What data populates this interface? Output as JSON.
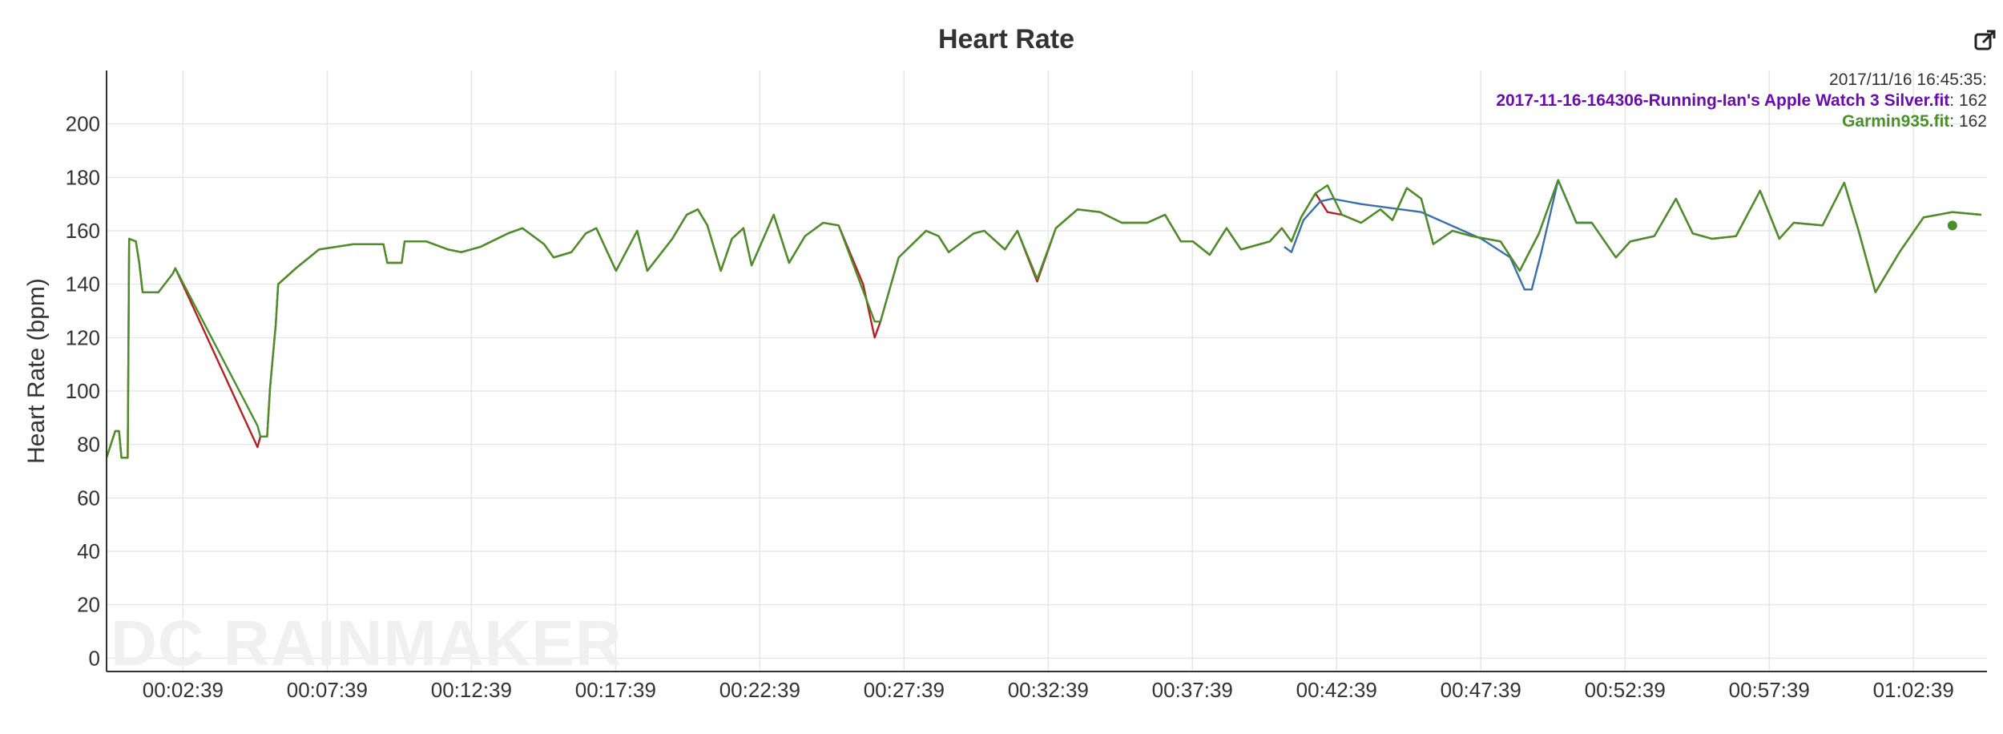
{
  "toolbar": {
    "export_icon": "external-link-icon"
  },
  "colors": {
    "series_apple": "#b22222",
    "series_garmin": "#4a8f2a",
    "series_extra": "#3a6fa8",
    "grid": "#e6e6e6",
    "axis": "#333333",
    "legend_apple": "#6a0dad",
    "legend_garmin": "#4a8f2a",
    "watermark": "#f0f0f0"
  },
  "watermark": "DC RAINMAKER",
  "tooltip": {
    "timestamp": "2017/11/16 16:45:35:",
    "entries": [
      {
        "name": "2017-11-16-164306-Running-Ian's Apple Watch 3 Silver.fit",
        "value": ": 162",
        "color_key": "legend_apple"
      },
      {
        "name": "Garmin935.fit",
        "value": ": 162",
        "color_key": "legend_garmin"
      }
    ]
  },
  "chart_data": {
    "type": "line",
    "title": "Heart Rate",
    "xlabel": "",
    "ylabel": "Heart Rate (bpm)",
    "xlim": [
      "00:00:00",
      "01:05:12"
    ],
    "ylim": [
      -5,
      220
    ],
    "x_ticks": [
      "00:02:39",
      "00:07:39",
      "00:12:39",
      "00:17:39",
      "00:22:39",
      "00:27:39",
      "00:32:39",
      "00:37:39",
      "00:42:39",
      "00:47:39",
      "00:52:39",
      "00:57:39",
      "01:02:39"
    ],
    "y_ticks": [
      0,
      20,
      40,
      60,
      80,
      100,
      120,
      140,
      160,
      180,
      200
    ],
    "grid": true,
    "legend_position": "top-right",
    "series": [
      {
        "color_key": "series_apple",
        "points": [
          [
            "00:00:00",
            75
          ],
          [
            "00:00:18",
            85
          ],
          [
            "00:00:26",
            85
          ],
          [
            "00:00:31",
            75
          ],
          [
            "00:00:44",
            75
          ],
          [
            "00:00:47",
            157
          ],
          [
            "00:01:01",
            156
          ],
          [
            "00:01:08",
            148
          ],
          [
            "00:01:15",
            137
          ],
          [
            "00:01:48",
            137
          ],
          [
            "00:02:18",
            144
          ],
          [
            "00:02:23",
            146
          ],
          [
            "00:05:14",
            79
          ],
          [
            "00:05:20",
            83
          ],
          [
            "00:05:34",
            83
          ],
          [
            "00:05:40",
            101
          ],
          [
            "00:05:52",
            125
          ],
          [
            "00:05:57",
            140
          ],
          [
            "00:06:34",
            146
          ],
          [
            "00:07:22",
            153
          ],
          [
            "00:08:34",
            155
          ],
          [
            "00:09:36",
            155
          ],
          [
            "00:09:44",
            148
          ],
          [
            "00:10:14",
            148
          ],
          [
            "00:10:20",
            156
          ],
          [
            "00:11:05",
            156
          ],
          [
            "00:11:50",
            153
          ],
          [
            "00:12:18",
            152
          ],
          [
            "00:12:58",
            154
          ],
          [
            "00:13:55",
            159
          ],
          [
            "00:14:25",
            161
          ],
          [
            "00:15:10",
            155
          ],
          [
            "00:15:30",
            150
          ],
          [
            "00:16:07",
            152
          ],
          [
            "00:16:37",
            159
          ],
          [
            "00:16:59",
            161
          ],
          [
            "00:17:40",
            145
          ],
          [
            "00:18:24",
            160
          ],
          [
            "00:18:45",
            145
          ],
          [
            "00:19:37",
            157
          ],
          [
            "00:20:07",
            166
          ],
          [
            "00:20:30",
            168
          ],
          [
            "00:20:50",
            162
          ],
          [
            "00:21:18",
            145
          ],
          [
            "00:21:41",
            157
          ],
          [
            "00:22:05",
            161
          ],
          [
            "00:22:22",
            147
          ],
          [
            "00:23:08",
            166
          ],
          [
            "00:23:40",
            148
          ],
          [
            "00:24:13",
            158
          ],
          [
            "00:24:51",
            163
          ],
          [
            "00:25:23",
            162
          ],
          [
            "00:26:14",
            140
          ],
          [
            "00:26:38",
            120
          ],
          [
            "00:26:50",
            126
          ],
          [
            "00:27:28",
            150
          ],
          [
            "00:28:25",
            160
          ],
          [
            "00:28:51",
            158
          ],
          [
            "00:29:12",
            152
          ],
          [
            "00:30:04",
            159
          ],
          [
            "00:30:26",
            160
          ],
          [
            "00:31:09",
            153
          ],
          [
            "00:31:35",
            160
          ],
          [
            "00:32:16",
            141
          ],
          [
            "00:32:55",
            161
          ],
          [
            "00:33:40",
            168
          ],
          [
            "00:34:27",
            167
          ],
          [
            "00:35:12",
            163
          ],
          [
            "00:36:05",
            163
          ],
          [
            "00:36:42",
            166
          ],
          [
            "00:37:15",
            156
          ],
          [
            "00:37:40",
            156
          ],
          [
            "00:38:15",
            151
          ],
          [
            "00:38:50",
            161
          ],
          [
            "00:39:20",
            153
          ],
          [
            "00:40:20",
            156
          ],
          [
            "00:40:45",
            161
          ],
          [
            "00:41:05",
            156
          ],
          [
            "00:41:25",
            165
          ],
          [
            "00:41:55",
            174
          ],
          [
            "00:42:20",
            167
          ],
          [
            "00:42:50",
            166
          ],
          [
            "00:43:30",
            163
          ],
          [
            "00:44:10",
            168
          ],
          [
            "00:44:35",
            164
          ],
          [
            "00:45:05",
            176
          ],
          [
            "00:45:35",
            172
          ],
          [
            "00:46:00",
            155
          ],
          [
            "00:46:40",
            160
          ],
          [
            "00:47:20",
            158
          ],
          [
            "00:48:20",
            156
          ],
          [
            "00:49:00",
            145
          ],
          [
            "00:49:40",
            159
          ],
          [
            "00:50:20",
            179
          ],
          [
            "00:50:58",
            163
          ],
          [
            "00:51:30",
            163
          ],
          [
            "00:52:20",
            150
          ],
          [
            "00:52:50",
            156
          ],
          [
            "00:53:40",
            158
          ],
          [
            "00:54:25",
            172
          ],
          [
            "00:55:00",
            159
          ],
          [
            "00:55:40",
            157
          ],
          [
            "00:56:30",
            158
          ],
          [
            "00:57:20",
            175
          ],
          [
            "00:58:00",
            157
          ],
          [
            "00:58:30",
            163
          ],
          [
            "00:59:30",
            162
          ],
          [
            "01:00:15",
            178
          ],
          [
            "01:00:45",
            160
          ],
          [
            "01:01:20",
            137
          ],
          [
            "01:02:10",
            152
          ],
          [
            "01:03:00",
            165
          ],
          [
            "01:04:00",
            167
          ],
          [
            "01:05:00",
            166
          ]
        ]
      },
      {
        "color_key": "series_extra",
        "points": [
          [
            "00:40:50",
            154
          ],
          [
            "00:41:05",
            152
          ],
          [
            "00:41:30",
            164
          ],
          [
            "00:42:05",
            171
          ],
          [
            "00:42:30",
            172
          ],
          [
            "00:43:30",
            170
          ],
          [
            "00:45:35",
            167
          ],
          [
            "00:47:40",
            157
          ],
          [
            "00:48:40",
            150
          ],
          [
            "00:49:10",
            138
          ],
          [
            "00:49:25",
            138
          ],
          [
            "00:49:45",
            152
          ],
          [
            "00:50:20",
            179
          ],
          [
            "00:50:58",
            163
          ],
          [
            "00:51:30",
            163
          ]
        ]
      },
      {
        "color_key": "series_garmin",
        "points": [
          [
            "00:00:00",
            75
          ],
          [
            "00:00:18",
            85
          ],
          [
            "00:00:26",
            85
          ],
          [
            "00:00:31",
            75
          ],
          [
            "00:00:44",
            75
          ],
          [
            "00:00:47",
            157
          ],
          [
            "00:01:01",
            156
          ],
          [
            "00:01:08",
            148
          ],
          [
            "00:01:15",
            137
          ],
          [
            "00:01:48",
            137
          ],
          [
            "00:02:18",
            144
          ],
          [
            "00:02:23",
            146
          ],
          [
            "00:05:14",
            87
          ],
          [
            "00:05:20",
            83
          ],
          [
            "00:05:34",
            83
          ],
          [
            "00:05:40",
            101
          ],
          [
            "00:05:52",
            125
          ],
          [
            "00:05:57",
            140
          ],
          [
            "00:06:34",
            146
          ],
          [
            "00:07:22",
            153
          ],
          [
            "00:08:34",
            155
          ],
          [
            "00:09:36",
            155
          ],
          [
            "00:09:44",
            148
          ],
          [
            "00:10:14",
            148
          ],
          [
            "00:10:20",
            156
          ],
          [
            "00:11:05",
            156
          ],
          [
            "00:11:50",
            153
          ],
          [
            "00:12:18",
            152
          ],
          [
            "00:12:58",
            154
          ],
          [
            "00:13:55",
            159
          ],
          [
            "00:14:25",
            161
          ],
          [
            "00:15:10",
            155
          ],
          [
            "00:15:30",
            150
          ],
          [
            "00:16:07",
            152
          ],
          [
            "00:16:37",
            159
          ],
          [
            "00:16:59",
            161
          ],
          [
            "00:17:40",
            145
          ],
          [
            "00:18:24",
            160
          ],
          [
            "00:18:45",
            145
          ],
          [
            "00:19:37",
            157
          ],
          [
            "00:20:07",
            166
          ],
          [
            "00:20:30",
            168
          ],
          [
            "00:20:50",
            162
          ],
          [
            "00:21:18",
            145
          ],
          [
            "00:21:41",
            157
          ],
          [
            "00:22:05",
            161
          ],
          [
            "00:22:22",
            147
          ],
          [
            "00:23:08",
            166
          ],
          [
            "00:23:40",
            148
          ],
          [
            "00:24:13",
            158
          ],
          [
            "00:24:51",
            163
          ],
          [
            "00:25:23",
            162
          ],
          [
            "00:26:38",
            126
          ],
          [
            "00:26:50",
            126
          ],
          [
            "00:27:28",
            150
          ],
          [
            "00:28:25",
            160
          ],
          [
            "00:28:51",
            158
          ],
          [
            "00:29:12",
            152
          ],
          [
            "00:30:04",
            159
          ],
          [
            "00:30:26",
            160
          ],
          [
            "00:31:09",
            153
          ],
          [
            "00:31:35",
            160
          ],
          [
            "00:32:16",
            142
          ],
          [
            "00:32:55",
            161
          ],
          [
            "00:33:40",
            168
          ],
          [
            "00:34:27",
            167
          ],
          [
            "00:35:12",
            163
          ],
          [
            "00:36:05",
            163
          ],
          [
            "00:36:42",
            166
          ],
          [
            "00:37:15",
            156
          ],
          [
            "00:37:40",
            156
          ],
          [
            "00:38:15",
            151
          ],
          [
            "00:38:50",
            161
          ],
          [
            "00:39:20",
            153
          ],
          [
            "00:40:20",
            156
          ],
          [
            "00:40:45",
            161
          ],
          [
            "00:41:05",
            156
          ],
          [
            "00:41:25",
            165
          ],
          [
            "00:41:55",
            174
          ],
          [
            "00:42:20",
            177
          ],
          [
            "00:42:50",
            166
          ],
          [
            "00:43:30",
            163
          ],
          [
            "00:44:10",
            168
          ],
          [
            "00:44:35",
            164
          ],
          [
            "00:45:05",
            176
          ],
          [
            "00:45:35",
            172
          ],
          [
            "00:46:00",
            155
          ],
          [
            "00:46:40",
            160
          ],
          [
            "00:47:20",
            158
          ],
          [
            "00:48:20",
            156
          ],
          [
            "00:49:00",
            145
          ],
          [
            "00:49:40",
            159
          ],
          [
            "00:50:20",
            179
          ],
          [
            "00:50:58",
            163
          ],
          [
            "00:51:30",
            163
          ],
          [
            "00:52:20",
            150
          ],
          [
            "00:52:50",
            156
          ],
          [
            "00:53:40",
            158
          ],
          [
            "00:54:25",
            172
          ],
          [
            "00:55:00",
            159
          ],
          [
            "00:55:40",
            157
          ],
          [
            "00:56:30",
            158
          ],
          [
            "00:57:20",
            175
          ],
          [
            "00:58:00",
            157
          ],
          [
            "00:58:30",
            163
          ],
          [
            "00:59:30",
            162
          ],
          [
            "01:00:15",
            178
          ],
          [
            "01:00:45",
            160
          ],
          [
            "01:01:20",
            137
          ],
          [
            "01:02:10",
            152
          ],
          [
            "01:03:00",
            165
          ],
          [
            "01:04:00",
            167
          ],
          [
            "01:05:00",
            166
          ]
        ]
      }
    ],
    "markers": [
      {
        "x": "01:04:00",
        "y": 162,
        "color_key": "series_garmin"
      }
    ]
  }
}
